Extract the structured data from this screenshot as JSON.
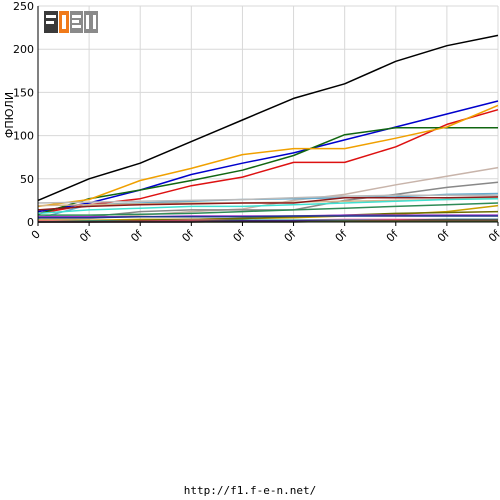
{
  "logo": {
    "text": "F1EN",
    "colors": {
      "dark": "#3a3a3a",
      "mid": "#8a8a8a",
      "accent": "#f07a1a"
    }
  },
  "footer": {
    "url": "http://f1.f-e-n.net/"
  },
  "chart_data": {
    "type": "line",
    "title": "",
    "xlabel": "",
    "ylabel": "ФПЮЛИ",
    "ylim": [
      0,
      250
    ],
    "yticks": [
      0,
      50,
      100,
      150,
      200,
      250
    ],
    "categories": [
      "0",
      "0f",
      "0f",
      "0f",
      "0f",
      "0f",
      "0f",
      "0f",
      "0f",
      "0f"
    ],
    "grid": true,
    "series": [
      {
        "color": "#000000",
        "values": [
          25,
          50,
          68,
          93,
          118,
          143,
          160,
          186,
          204,
          216
        ]
      },
      {
        "color": "#0000cc",
        "values": [
          12,
          22,
          37,
          55,
          68,
          80,
          95,
          110,
          125,
          140
        ]
      },
      {
        "color": "#dd1111",
        "values": [
          10,
          20,
          27,
          42,
          52,
          69,
          69,
          87,
          113,
          130
        ]
      },
      {
        "color": "#116611",
        "values": [
          9,
          27,
          37,
          48,
          60,
          77,
          101,
          109,
          109,
          109
        ]
      },
      {
        "color": "#f0a000",
        "values": [
          18,
          26,
          48,
          62,
          78,
          85,
          85,
          97,
          110,
          135
        ]
      },
      {
        "color": "#c8b4aa",
        "values": [
          3,
          4,
          8,
          12,
          15,
          25,
          32,
          43,
          53,
          63
        ]
      },
      {
        "color": "#888888",
        "values": [
          5,
          6,
          12,
          14,
          14,
          14,
          25,
          32,
          40,
          46
        ]
      },
      {
        "color": "#66aacc",
        "values": [
          4,
          20,
          22,
          24,
          26,
          27,
          28,
          29,
          32,
          33
        ]
      },
      {
        "color": "#bbbbbb",
        "values": [
          22,
          23,
          24,
          25,
          26,
          28,
          30,
          31,
          31,
          31
        ]
      },
      {
        "color": "#d2b48c",
        "values": [
          19,
          20,
          21,
          22,
          22,
          23,
          24,
          25,
          26,
          28
        ]
      },
      {
        "color": "#8b1a1a",
        "values": [
          14,
          18,
          20,
          21,
          22,
          22,
          28,
          28,
          28,
          29
        ]
      },
      {
        "color": "#40e0d0",
        "values": [
          10,
          14,
          16,
          18,
          18,
          20,
          22,
          24,
          26,
          27
        ]
      },
      {
        "color": "#2e8b57",
        "values": [
          8,
          8,
          9,
          10,
          12,
          14,
          16,
          18,
          20,
          22
        ]
      },
      {
        "color": "#c8a000",
        "values": [
          2,
          2,
          3,
          3,
          4,
          5,
          7,
          9,
          12,
          19
        ]
      },
      {
        "color": "#6b6b00",
        "values": [
          1,
          1,
          2,
          3,
          4,
          6,
          8,
          10,
          11,
          12
        ]
      },
      {
        "color": "#9932cc",
        "values": [
          6,
          6,
          6,
          7,
          7,
          7,
          8,
          8,
          8,
          8
        ]
      },
      {
        "color": "#1e3a8a",
        "values": [
          5,
          5,
          6,
          6,
          6,
          7,
          7,
          7,
          7,
          7
        ]
      },
      {
        "color": "#ff69b4",
        "values": [
          1,
          1,
          1,
          2,
          2,
          2,
          3,
          3,
          3,
          3
        ]
      },
      {
        "color": "#008080",
        "values": [
          0,
          1,
          1,
          1,
          2,
          2,
          2,
          2,
          3,
          3
        ]
      },
      {
        "color": "#a52a2a",
        "values": [
          0,
          0,
          1,
          1,
          1,
          1,
          1,
          2,
          2,
          2
        ]
      },
      {
        "color": "#4b0082",
        "values": [
          0,
          0,
          0,
          0,
          1,
          1,
          1,
          1,
          1,
          1
        ]
      },
      {
        "color": "#556b2f",
        "values": [
          0,
          0,
          0,
          0,
          0,
          0,
          1,
          1,
          1,
          1
        ]
      }
    ]
  }
}
